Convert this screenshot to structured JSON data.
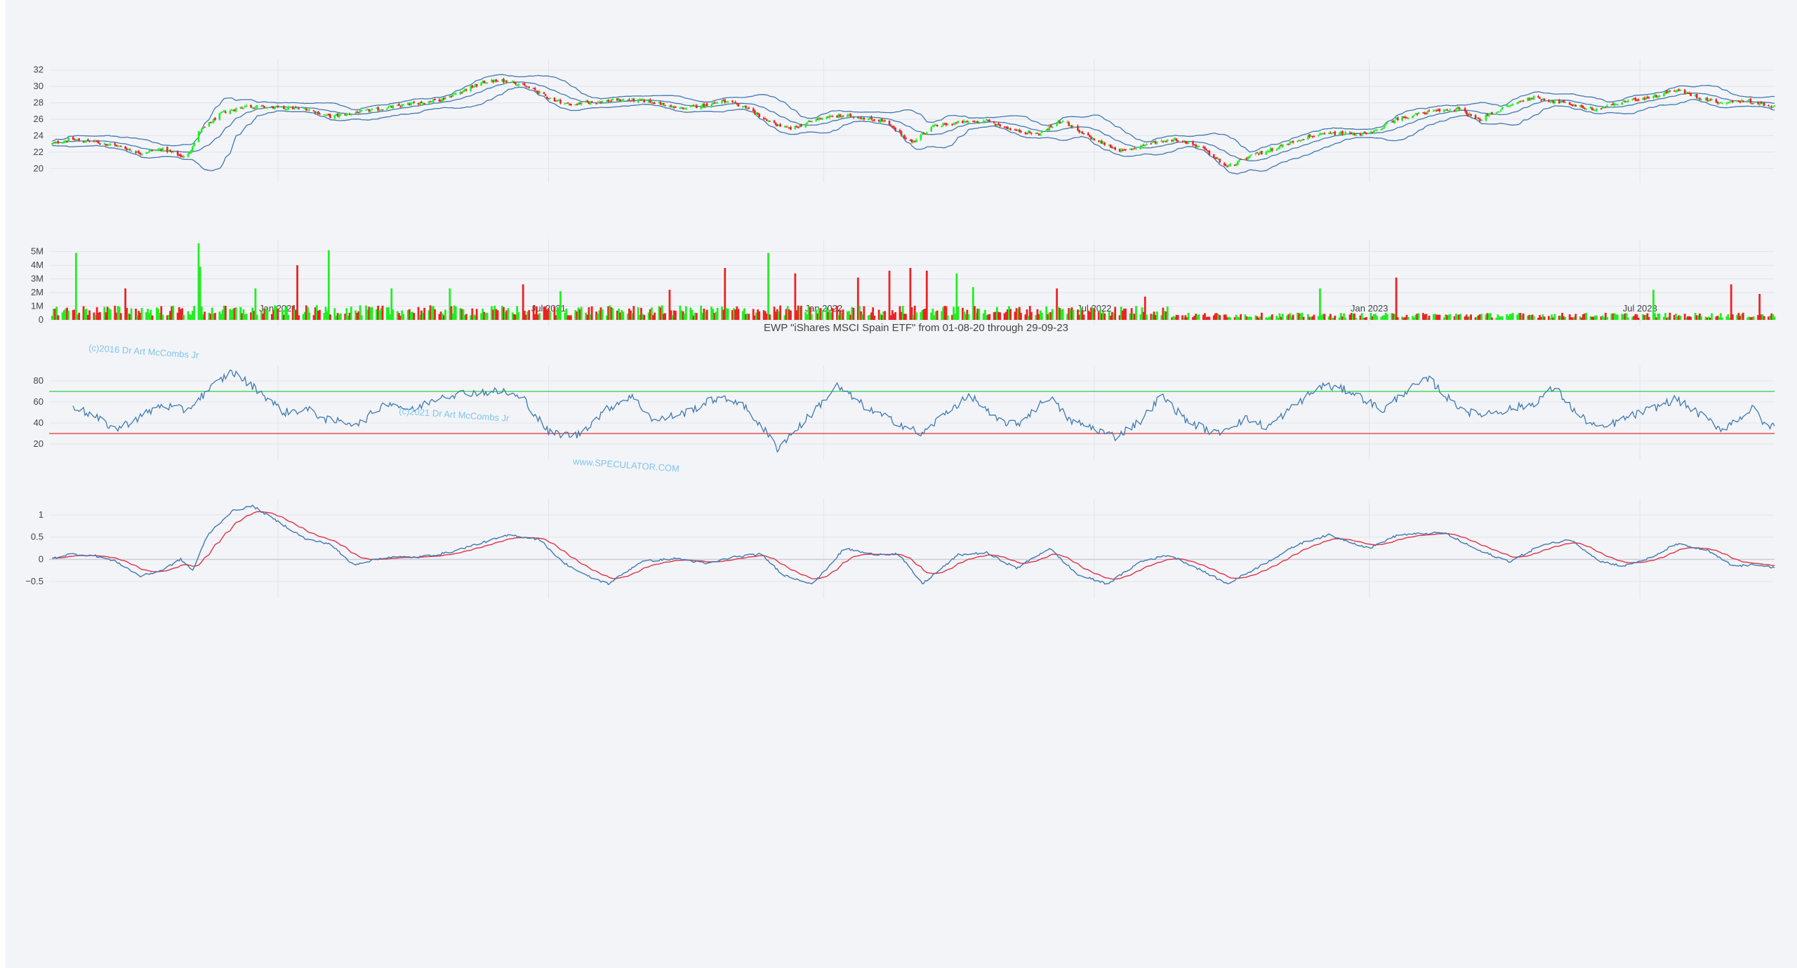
{
  "chart_title": "EWP \"iShares MSCI Spain ETF\" from 01-08-20 through 29-09-23",
  "watermarks": [
    "(c)2016 Dr Art McCombs Jr",
    "(c)2021 Dr Art McCombs Jr",
    "www.SPECULATOR.COM"
  ],
  "colors": {
    "up": "#22ee22",
    "down": "#ee2222",
    "line": "#3e79b0",
    "signal": "#dd3344",
    "rsi_upper": "#2ecc40",
    "rsi_lower": "#e03030",
    "grid": "#e2e4ec",
    "panel_bg": "#f3f4f8"
  },
  "x_ticks": [
    "Jan 2021",
    "Jul 2021",
    "Jan 2022",
    "Jul 2022",
    "Jan 2023",
    "Jul 2023"
  ],
  "chart_data": [
    {
      "type": "candlestick",
      "name": "price",
      "x_start": "2020-08-01",
      "x_end": "2023-09-29",
      "yticks": [
        "20",
        "22",
        "24",
        "26",
        "28",
        "30",
        "32"
      ],
      "ylim": [
        19,
        33
      ],
      "overlay": "bollinger bands",
      "close_path": [
        [
          "2020-08-01",
          22.9
        ],
        [
          "2020-08-15",
          23.6
        ],
        [
          "2020-09-01",
          23.2
        ],
        [
          "2020-09-15",
          22.8
        ],
        [
          "2020-10-01",
          21.9
        ],
        [
          "2020-10-15",
          22.4
        ],
        [
          "2020-11-01",
          21.3
        ],
        [
          "2020-11-09",
          24.4
        ],
        [
          "2020-11-25",
          26.8
        ],
        [
          "2020-12-10",
          27.6
        ],
        [
          "2021-01-01",
          27.4
        ],
        [
          "2021-01-20",
          27.3
        ],
        [
          "2021-02-05",
          26.3
        ],
        [
          "2021-02-25",
          26.9
        ],
        [
          "2021-03-15",
          27.4
        ],
        [
          "2021-04-01",
          27.9
        ],
        [
          "2021-04-20",
          28.4
        ],
        [
          "2021-05-05",
          29.5
        ],
        [
          "2021-05-20",
          30.6
        ],
        [
          "2021-06-05",
          30.7
        ],
        [
          "2021-06-20",
          29.7
        ],
        [
          "2021-07-01",
          28.6
        ],
        [
          "2021-07-15",
          27.8
        ],
        [
          "2021-08-01",
          28.1
        ],
        [
          "2021-08-20",
          28.4
        ],
        [
          "2021-09-10",
          28.1
        ],
        [
          "2021-09-25",
          27.3
        ],
        [
          "2021-10-10",
          27.6
        ],
        [
          "2021-10-25",
          28.2
        ],
        [
          "2021-11-10",
          27.5
        ],
        [
          "2021-11-26",
          25.6
        ],
        [
          "2021-12-10",
          24.8
        ],
        [
          "2022-01-01",
          26.3
        ],
        [
          "2022-01-20",
          26.4
        ],
        [
          "2022-02-10",
          25.8
        ],
        [
          "2022-03-01",
          23.2
        ],
        [
          "2022-03-15",
          25.1
        ],
        [
          "2022-04-01",
          25.6
        ],
        [
          "2022-04-20",
          25.8
        ],
        [
          "2022-05-10",
          24.6
        ],
        [
          "2022-05-25",
          24.2
        ],
        [
          "2022-06-10",
          25.9
        ],
        [
          "2022-06-20",
          24.5
        ],
        [
          "2022-07-05",
          23.2
        ],
        [
          "2022-07-20",
          22.1
        ],
        [
          "2022-08-10",
          23.2
        ],
        [
          "2022-08-25",
          23.6
        ],
        [
          "2022-09-10",
          22.6
        ],
        [
          "2022-09-28",
          20.2
        ],
        [
          "2022-10-15",
          21.6
        ],
        [
          "2022-11-01",
          22.6
        ],
        [
          "2022-11-20",
          23.9
        ],
        [
          "2022-12-10",
          24.3
        ],
        [
          "2023-01-01",
          24.2
        ],
        [
          "2023-01-20",
          26.1
        ],
        [
          "2023-02-10",
          26.9
        ],
        [
          "2023-03-01",
          27.3
        ],
        [
          "2023-03-15",
          25.9
        ],
        [
          "2023-04-01",
          27.4
        ],
        [
          "2023-04-20",
          28.7
        ],
        [
          "2023-05-10",
          28.0
        ],
        [
          "2023-06-01",
          27.2
        ],
        [
          "2023-06-20",
          28.1
        ],
        [
          "2023-07-10",
          28.8
        ],
        [
          "2023-07-25",
          29.6
        ],
        [
          "2023-08-10",
          28.6
        ],
        [
          "2023-08-25",
          28.0
        ],
        [
          "2023-09-10",
          28.3
        ],
        [
          "2023-09-29",
          27.5
        ]
      ]
    },
    {
      "type": "bar",
      "name": "volume",
      "yticks": [
        "0",
        "1M",
        "2M",
        "3M",
        "4M",
        "5M"
      ],
      "ylim": [
        0,
        5700000
      ],
      "spikes": [
        [
          "2020-08-20",
          4900000,
          "up"
        ],
        [
          "2020-09-20",
          2300000,
          "down"
        ],
        [
          "2020-11-10",
          5600000,
          "up"
        ],
        [
          "2020-11-11",
          3900000,
          "up"
        ],
        [
          "2020-12-18",
          2300000,
          "up"
        ],
        [
          "2021-01-15",
          4000000,
          "down"
        ],
        [
          "2021-02-05",
          5100000,
          "up"
        ],
        [
          "2021-03-19",
          2300000,
          "up"
        ],
        [
          "2021-04-25",
          2300000,
          "up"
        ],
        [
          "2021-06-15",
          2600000,
          "down"
        ],
        [
          "2021-07-10",
          2100000,
          "up"
        ],
        [
          "2021-09-20",
          2200000,
          "down"
        ],
        [
          "2021-10-28",
          3800000,
          "down"
        ],
        [
          "2021-11-26",
          4900000,
          "up"
        ],
        [
          "2021-12-12",
          3400000,
          "down"
        ],
        [
          "2022-01-25",
          3100000,
          "down"
        ],
        [
          "2022-02-15",
          3600000,
          "down"
        ],
        [
          "2022-03-01",
          3800000,
          "down"
        ],
        [
          "2022-03-12",
          3600000,
          "down"
        ],
        [
          "2022-04-01",
          3400000,
          "up"
        ],
        [
          "2022-04-12",
          2400000,
          "up"
        ],
        [
          "2022-06-05",
          2300000,
          "down"
        ],
        [
          "2022-08-05",
          1700000,
          "down"
        ],
        [
          "2022-11-30",
          2300000,
          "up"
        ],
        [
          "2023-01-20",
          3100000,
          "down"
        ],
        [
          "2023-07-10",
          2200000,
          "up"
        ],
        [
          "2023-09-01",
          2600000,
          "down"
        ],
        [
          "2023-09-20",
          1900000,
          "down"
        ]
      ]
    },
    {
      "type": "line",
      "name": "rsi",
      "yticks": [
        "20",
        "40",
        "60",
        "80"
      ],
      "ylim": [
        10,
        92
      ],
      "levels": {
        "upper": 70,
        "lower": 30
      },
      "series_path": [
        [
          "2020-08-15",
          58
        ],
        [
          "2020-09-01",
          45
        ],
        [
          "2020-09-15",
          34
        ],
        [
          "2020-10-01",
          46
        ],
        [
          "2020-10-15",
          57
        ],
        [
          "2020-11-01",
          52
        ],
        [
          "2020-11-15",
          71
        ],
        [
          "2020-12-01",
          89
        ],
        [
          "2020-12-20",
          70
        ],
        [
          "2021-01-05",
          50
        ],
        [
          "2021-01-20",
          53
        ],
        [
          "2021-02-05",
          42
        ],
        [
          "2021-02-25",
          40
        ],
        [
          "2021-03-15",
          60
        ],
        [
          "2021-04-01",
          52
        ],
        [
          "2021-04-20",
          66
        ],
        [
          "2021-05-10",
          69
        ],
        [
          "2021-06-01",
          70
        ],
        [
          "2021-06-15",
          62
        ],
        [
          "2021-07-01",
          31
        ],
        [
          "2021-07-20",
          28
        ],
        [
          "2021-08-10",
          54
        ],
        [
          "2021-08-25",
          66
        ],
        [
          "2021-09-10",
          42
        ],
        [
          "2021-10-01",
          50
        ],
        [
          "2021-10-20",
          63
        ],
        [
          "2021-11-05",
          61
        ],
        [
          "2021-11-20",
          38
        ],
        [
          "2021-12-01",
          16
        ],
        [
          "2021-12-20",
          43
        ],
        [
          "2022-01-10",
          75
        ],
        [
          "2022-02-01",
          52
        ],
        [
          "2022-02-20",
          40
        ],
        [
          "2022-03-08",
          29
        ],
        [
          "2022-03-25",
          52
        ],
        [
          "2022-04-10",
          66
        ],
        [
          "2022-04-25",
          44
        ],
        [
          "2022-05-10",
          38
        ],
        [
          "2022-06-01",
          65
        ],
        [
          "2022-06-15",
          42
        ],
        [
          "2022-07-01",
          35
        ],
        [
          "2022-07-15",
          27
        ],
        [
          "2022-08-01",
          42
        ],
        [
          "2022-08-15",
          66
        ],
        [
          "2022-09-01",
          42
        ],
        [
          "2022-09-20",
          30
        ],
        [
          "2022-10-10",
          44
        ],
        [
          "2022-10-25",
          36
        ],
        [
          "2022-11-15",
          60
        ],
        [
          "2022-12-01",
          76
        ],
        [
          "2022-12-20",
          70
        ],
        [
          "2023-01-10",
          52
        ],
        [
          "2023-01-25",
          70
        ],
        [
          "2023-02-10",
          82
        ],
        [
          "2023-02-25",
          60
        ],
        [
          "2023-03-12",
          48
        ],
        [
          "2023-04-01",
          52
        ],
        [
          "2023-04-20",
          58
        ],
        [
          "2023-05-05",
          74
        ],
        [
          "2023-05-20",
          48
        ],
        [
          "2023-06-05",
          34
        ],
        [
          "2023-06-20",
          44
        ],
        [
          "2023-07-10",
          54
        ],
        [
          "2023-07-25",
          63
        ],
        [
          "2023-08-10",
          48
        ],
        [
          "2023-08-25",
          34
        ],
        [
          "2023-09-15",
          54
        ],
        [
          "2023-09-25",
          34
        ],
        [
          "2023-09-29",
          40
        ]
      ]
    },
    {
      "type": "line",
      "name": "oscillator",
      "yticks": [
        "1",
        "0.5",
        "0",
        "−0.5"
      ],
      "ylim": [
        -0.75,
        1.3
      ],
      "series_path": [
        [
          "2020-08-01",
          0.0
        ],
        [
          "2020-08-15",
          0.12
        ],
        [
          "2020-09-01",
          0.08
        ],
        [
          "2020-09-15",
          -0.05
        ],
        [
          "2020-10-01",
          -0.38
        ],
        [
          "2020-10-15",
          -0.25
        ],
        [
          "2020-10-28",
          0.0
        ],
        [
          "2020-11-05",
          -0.25
        ],
        [
          "2020-11-15",
          0.55
        ],
        [
          "2020-12-01",
          1.08
        ],
        [
          "2020-12-15",
          1.2
        ],
        [
          "2021-01-01",
          0.85
        ],
        [
          "2021-01-20",
          0.45
        ],
        [
          "2021-02-05",
          0.35
        ],
        [
          "2021-02-20",
          -0.12
        ],
        [
          "2021-03-15",
          0.05
        ],
        [
          "2021-04-05",
          0.05
        ],
        [
          "2021-04-25",
          0.15
        ],
        [
          "2021-05-15",
          0.35
        ],
        [
          "2021-06-05",
          0.55
        ],
        [
          "2021-06-25",
          0.45
        ],
        [
          "2021-07-10",
          -0.05
        ],
        [
          "2021-07-25",
          -0.35
        ],
        [
          "2021-08-10",
          -0.55
        ],
        [
          "2021-09-01",
          -0.05
        ],
        [
          "2021-09-25",
          0.02
        ],
        [
          "2021-10-15",
          -0.1
        ],
        [
          "2021-11-01",
          0.05
        ],
        [
          "2021-11-20",
          0.12
        ],
        [
          "2021-12-05",
          -0.35
        ],
        [
          "2021-12-25",
          -0.55
        ],
        [
          "2022-01-15",
          0.25
        ],
        [
          "2022-02-01",
          0.12
        ],
        [
          "2022-02-20",
          0.12
        ],
        [
          "2022-03-08",
          -0.55
        ],
        [
          "2022-04-01",
          0.1
        ],
        [
          "2022-04-20",
          0.15
        ],
        [
          "2022-05-10",
          -0.2
        ],
        [
          "2022-06-01",
          0.25
        ],
        [
          "2022-06-20",
          -0.35
        ],
        [
          "2022-07-10",
          -0.55
        ],
        [
          "2022-08-01",
          -0.05
        ],
        [
          "2022-08-20",
          0.1
        ],
        [
          "2022-09-05",
          -0.15
        ],
        [
          "2022-09-28",
          -0.55
        ],
        [
          "2022-10-20",
          -0.15
        ],
        [
          "2022-11-15",
          0.35
        ],
        [
          "2022-12-05",
          0.55
        ],
        [
          "2023-01-01",
          0.25
        ],
        [
          "2023-01-20",
          0.55
        ],
        [
          "2023-02-20",
          0.6
        ],
        [
          "2023-03-15",
          0.2
        ],
        [
          "2023-04-05",
          -0.05
        ],
        [
          "2023-04-25",
          0.3
        ],
        [
          "2023-05-15",
          0.45
        ],
        [
          "2023-06-05",
          -0.05
        ],
        [
          "2023-06-20",
          -0.15
        ],
        [
          "2023-07-10",
          0.05
        ],
        [
          "2023-07-25",
          0.35
        ],
        [
          "2023-08-15",
          0.2
        ],
        [
          "2023-09-01",
          -0.15
        ],
        [
          "2023-09-20",
          -0.12
        ],
        [
          "2023-09-29",
          -0.2
        ]
      ]
    }
  ]
}
